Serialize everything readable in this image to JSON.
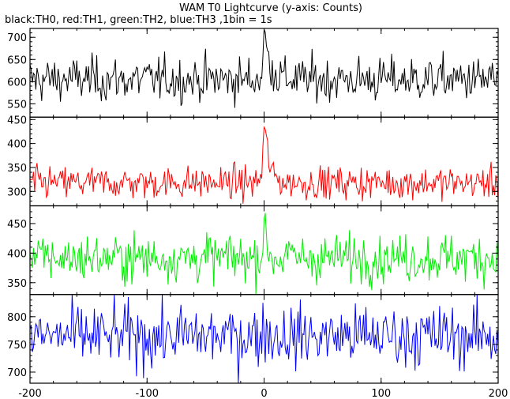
{
  "chart_data": {
    "type": "line",
    "title": "WAM T0 Lightcurve (y-axis: Counts)",
    "subtitle": "black:TH0, red:TH1, green:TH2, blue:TH3 ,1bin = 1s",
    "xlim": [
      -200,
      200
    ],
    "x_ticks": [
      -200,
      -100,
      0,
      100,
      200
    ],
    "x_tick_labels": [
      "-200",
      "-100",
      "0",
      "100",
      "200"
    ],
    "x_step": 1,
    "grid": false,
    "panels": [
      {
        "series": "TH0",
        "color": "#000000",
        "ylim": [
          520,
          720
        ],
        "y_ticks": [
          550,
          600,
          650,
          700
        ],
        "y_tick_labels": [
          "550",
          "600",
          "650",
          "700"
        ],
        "baseline": 605,
        "noise": 25,
        "peak": 105,
        "peak_x": 0,
        "decay": 5
      },
      {
        "series": "TH1",
        "color": "#ff0000",
        "ylim": [
          270,
          455
        ],
        "y_ticks": [
          300,
          350,
          400,
          450
        ],
        "y_tick_labels": [
          "300",
          "350",
          "400",
          "450"
        ],
        "baseline": 318,
        "noise": 17,
        "peak": 130,
        "peak_x": 0,
        "decay": 4
      },
      {
        "series": "TH2",
        "color": "#00ee00",
        "ylim": [
          330,
          480
        ],
        "y_ticks": [
          350,
          400,
          450
        ],
        "y_tick_labels": [
          "350",
          "400",
          "450"
        ],
        "baseline": 392,
        "noise": 20,
        "peak": 65,
        "peak_x": 0,
        "decay": 2
      },
      {
        "series": "TH3",
        "color": "#0000ff",
        "ylim": [
          680,
          840
        ],
        "y_ticks": [
          700,
          750,
          800
        ],
        "y_tick_labels": [
          "700",
          "750",
          "800"
        ],
        "baseline": 765,
        "noise": 28,
        "peak": 25,
        "peak_x": 0,
        "decay": 2
      }
    ]
  }
}
